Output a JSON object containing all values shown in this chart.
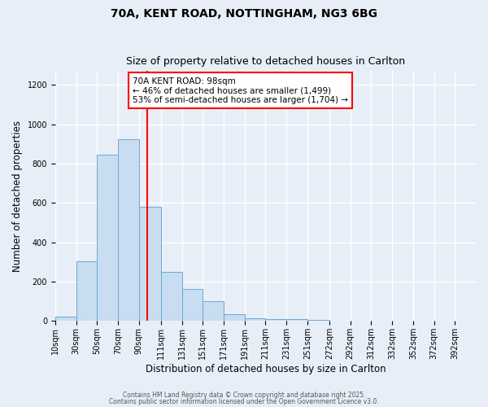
{
  "title1": "70A, KENT ROAD, NOTTINGHAM, NG3 6BG",
  "title2": "Size of property relative to detached houses in Carlton",
  "xlabel": "Distribution of detached houses by size in Carlton",
  "ylabel": "Number of detached properties",
  "bin_edges": [
    10,
    30,
    50,
    70,
    90,
    111,
    131,
    151,
    171,
    191,
    211,
    231,
    251,
    272,
    292,
    312,
    332,
    352,
    372,
    392,
    412
  ],
  "bar_heights": [
    20,
    305,
    845,
    925,
    580,
    248,
    163,
    100,
    35,
    12,
    10,
    8,
    5,
    0,
    0,
    0,
    0,
    0,
    0,
    0
  ],
  "bar_color": "#c8ddf0",
  "bar_edgecolor": "#6aaad4",
  "property_line_x": 98,
  "property_line_color": "red",
  "annotation_title": "70A KENT ROAD: 98sqm",
  "annotation_line1": "← 46% of detached houses are smaller (1,499)",
  "annotation_line2": "53% of semi-detached houses are larger (1,704) →",
  "annotation_box_edgecolor": "red",
  "annotation_box_facecolor": "white",
  "ylim": [
    0,
    1270
  ],
  "yticks": [
    0,
    200,
    400,
    600,
    800,
    1000,
    1200
  ],
  "background_color": "#e8eef8",
  "grid_color": "white",
  "footer1": "Contains HM Land Registry data © Crown copyright and database right 2025.",
  "footer2": "Contains public sector information licensed under the Open Government Licence v3.0.",
  "title_fontsize": 10,
  "subtitle_fontsize": 9,
  "tick_label_fontsize": 7,
  "xlabel_fontsize": 8.5,
  "ylabel_fontsize": 8.5,
  "footer_fontsize": 5.5,
  "annotation_fontsize": 7.5
}
